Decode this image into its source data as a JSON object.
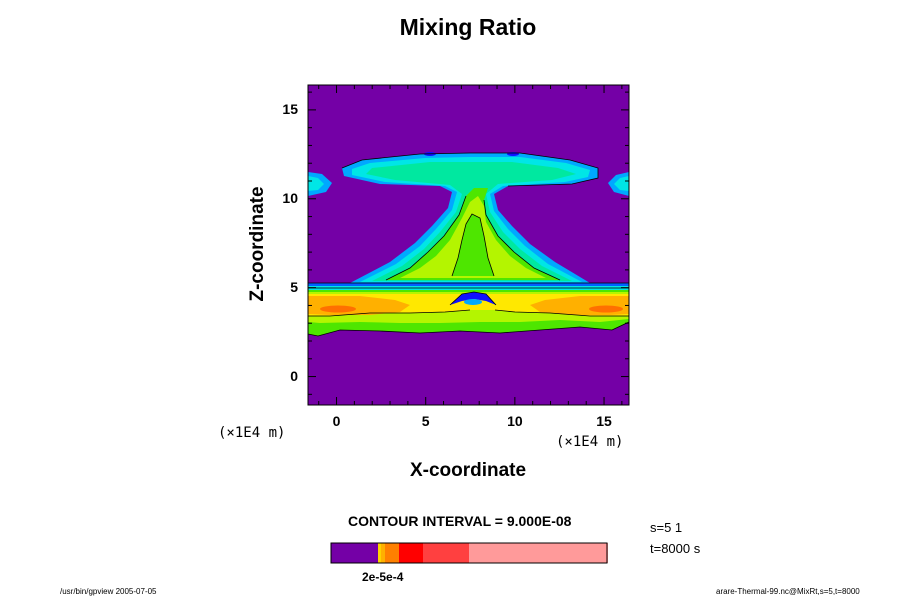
{
  "chart_data": {
    "type": "heatmap",
    "title": "Mixing Ratio",
    "xlabel": "X-coordinate",
    "ylabel": "Z-coordinate",
    "x_unit": "(×1E4 m)",
    "y_unit": "(×1E4 m)",
    "xlim": [
      -1.6,
      16.4
    ],
    "ylim": [
      -1.6,
      16.4
    ],
    "x_ticks": [
      0,
      5,
      10,
      15
    ],
    "y_ticks": [
      0,
      5,
      10,
      15
    ],
    "contour_interval": "CONTOUR INTERVAL = 9.000E-08",
    "colorbar_label": "2e-5e-4",
    "colorbar_colors": [
      "#7400a6",
      "#ffd200",
      "#ffb000",
      "#ff8000",
      "#ff0000",
      "#ff4040",
      "#ff9a9a"
    ],
    "palette": {
      "background": "#7400a6",
      "dark_blue": "#1010ff",
      "blue": "#00a8ff",
      "cyan": "#00e6e6",
      "teal": "#00e8a0",
      "green": "#4ee600",
      "lime": "#b4f500",
      "yellow": "#ffe800",
      "orange": "#ffb000",
      "dark_orange": "#ff7000",
      "red": "#ff2000"
    }
  },
  "info": {
    "s_line": "s=5 1",
    "t_line": "t=8000 s"
  },
  "footer": {
    "left": "/usr/bin/gpview 2005-07-05",
    "right": "arare-Thermal-99.nc@MixRt,s=5,t=8000"
  }
}
